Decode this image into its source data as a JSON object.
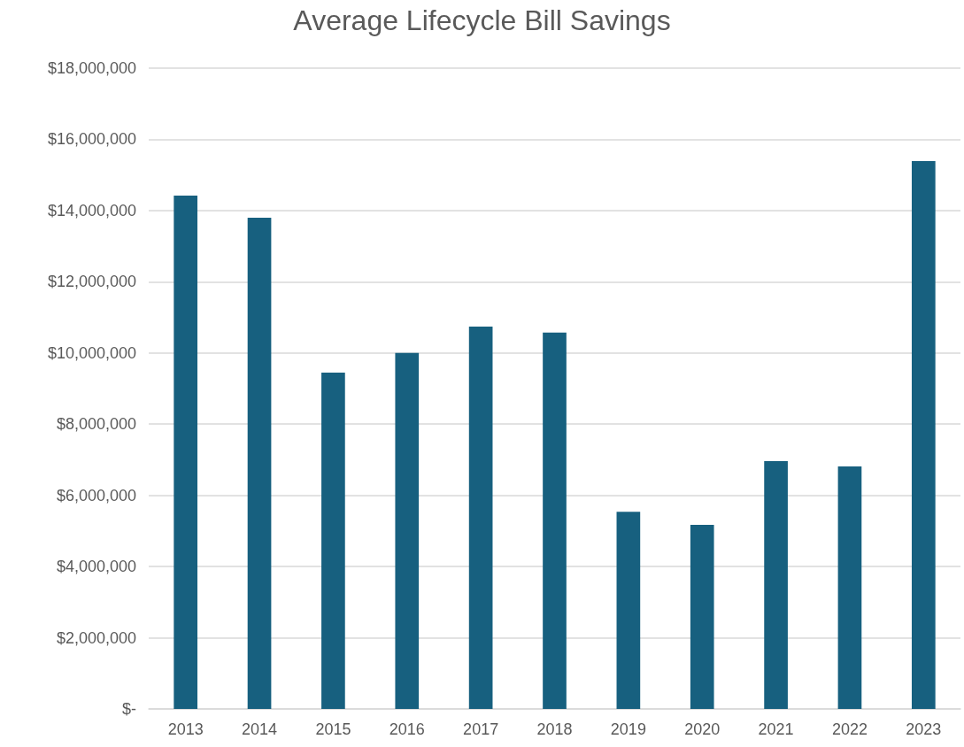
{
  "chart_data": {
    "type": "bar",
    "title": "Average Lifecycle Bill Savings",
    "categories": [
      "2013",
      "2014",
      "2015",
      "2016",
      "2017",
      "2018",
      "2019",
      "2020",
      "2021",
      "2022",
      "2023"
    ],
    "values": [
      14420000,
      13800000,
      9450000,
      10000000,
      10740000,
      10570000,
      5540000,
      5170000,
      6960000,
      6810000,
      15390000
    ],
    "color": "#17607f",
    "ylim": [
      0,
      18000000
    ],
    "yticks": [
      {
        "value": 0,
        "label": "$-"
      },
      {
        "value": 2000000,
        "label": "$2,000,000"
      },
      {
        "value": 4000000,
        "label": "$4,000,000"
      },
      {
        "value": 6000000,
        "label": "$6,000,000"
      },
      {
        "value": 8000000,
        "label": "$8,000,000"
      },
      {
        "value": 10000000,
        "label": "$10,000,000"
      },
      {
        "value": 12000000,
        "label": "$12,000,000"
      },
      {
        "value": 14000000,
        "label": "$14,000,000"
      },
      {
        "value": 16000000,
        "label": "$16,000,000"
      },
      {
        "value": 18000000,
        "label": "$18,000,000"
      }
    ],
    "grid": "y"
  }
}
